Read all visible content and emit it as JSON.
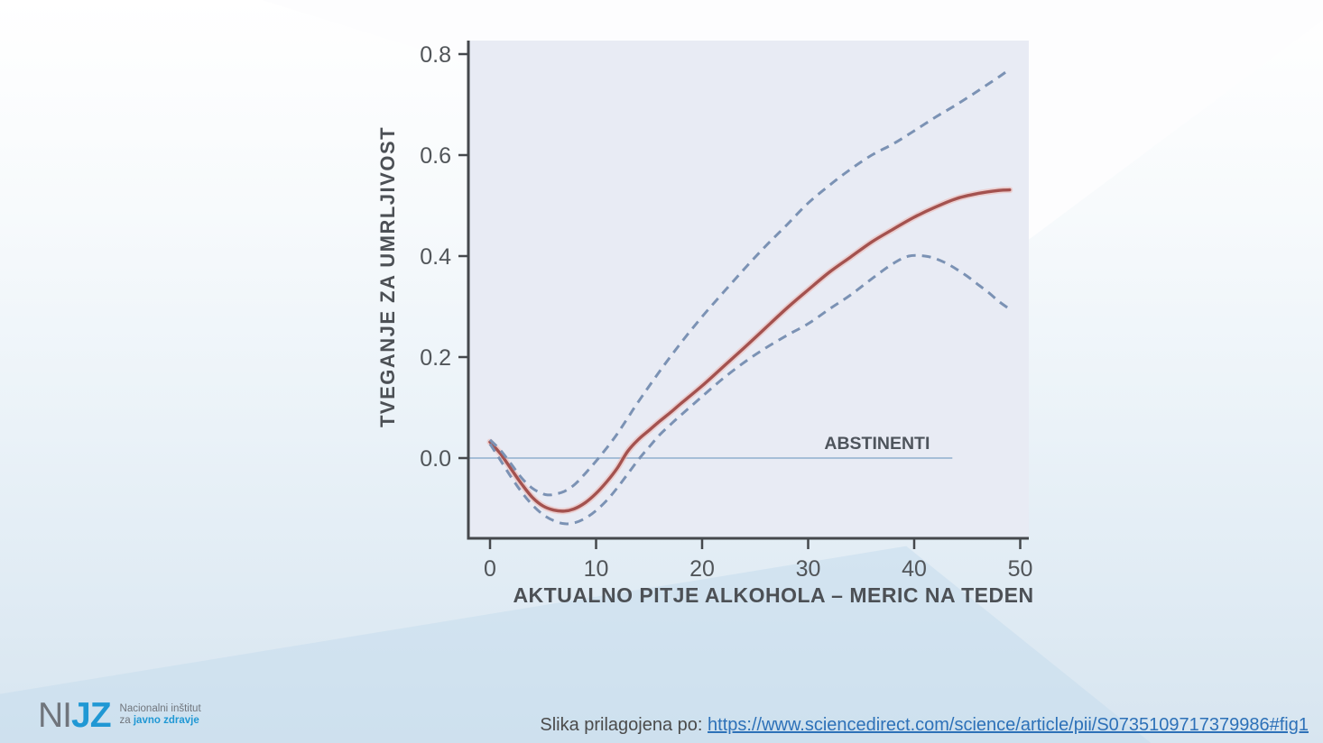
{
  "slide": {
    "logo": {
      "ni": "NI",
      "jz": "JZ",
      "line1": "Nacionalni inštitut",
      "line2_prefix": "za ",
      "line2_bold": "javno zdravje"
    },
    "citation": {
      "prefix": "Slika prilagojena po: ",
      "url": "https://www.sciencedirect.com/science/article/pii/S0735109717379986#fig1"
    }
  },
  "colors": {
    "mean_line": "#a4524f",
    "mean_halo": "#ecb6b1",
    "ci_line": "#7b92b4",
    "axis": "#45484c",
    "tick_label": "#515559",
    "axis_title": "#4c5055",
    "plot_bg": "#e8ebf4",
    "zero_line": "#8fb0cd",
    "annotation_text": "#4e545c"
  },
  "chart_data": {
    "type": "line",
    "title": "",
    "xlabel": "AKTUALNO PITJE ALKOHOLA – MERIC NA TEDEN",
    "ylabel": "TVEGANJE ZA UMRLJIVOST",
    "xlim": [
      -2,
      50.8
    ],
    "ylim": [
      -0.16,
      0.83
    ],
    "grid": false,
    "legend": "none",
    "xticks": [
      0,
      10,
      20,
      30,
      40,
      50
    ],
    "yticks": [
      0,
      0.2,
      0.4,
      0.6,
      0.8
    ],
    "ytick_labels": [
      "0.0",
      "0.2",
      "0.4",
      "0.6",
      "0.8"
    ],
    "annotation": {
      "label": "ABSTINENTI",
      "x": 36.5,
      "y": 0.03
    },
    "zero_line": {
      "y": 0,
      "x_start": -2,
      "x_end": 43.6
    },
    "series": [
      {
        "name": "mean_risk",
        "style": "solid",
        "points": [
          [
            0,
            0.032
          ],
          [
            1,
            0.008
          ],
          [
            2,
            -0.022
          ],
          [
            3,
            -0.052
          ],
          [
            4,
            -0.078
          ],
          [
            5,
            -0.095
          ],
          [
            6,
            -0.103
          ],
          [
            7,
            -0.105
          ],
          [
            8,
            -0.1
          ],
          [
            9,
            -0.088
          ],
          [
            10,
            -0.07
          ],
          [
            11,
            -0.047
          ],
          [
            12,
            -0.02
          ],
          [
            13,
            0.014
          ],
          [
            14,
            0.037
          ],
          [
            15,
            0.055
          ],
          [
            16,
            0.073
          ],
          [
            17,
            0.09
          ],
          [
            18,
            0.108
          ],
          [
            20,
            0.143
          ],
          [
            22,
            0.181
          ],
          [
            24,
            0.219
          ],
          [
            26,
            0.258
          ],
          [
            28,
            0.297
          ],
          [
            30,
            0.333
          ],
          [
            32,
            0.368
          ],
          [
            34,
            0.398
          ],
          [
            36,
            0.428
          ],
          [
            38,
            0.453
          ],
          [
            40,
            0.477
          ],
          [
            42,
            0.497
          ],
          [
            44,
            0.514
          ],
          [
            46,
            0.524
          ],
          [
            48,
            0.53
          ],
          [
            49,
            0.531
          ]
        ]
      },
      {
        "name": "upper_confidence_bound",
        "style": "dashed",
        "points": [
          [
            0,
            0.036
          ],
          [
            1,
            0.015
          ],
          [
            2,
            -0.012
          ],
          [
            3,
            -0.04
          ],
          [
            4,
            -0.06
          ],
          [
            5,
            -0.071
          ],
          [
            5.5,
            -0.073
          ],
          [
            6,
            -0.072
          ],
          [
            7,
            -0.066
          ],
          [
            8,
            -0.052
          ],
          [
            9,
            -0.03
          ],
          [
            10,
            -0.006
          ],
          [
            11,
            0.02
          ],
          [
            12,
            0.048
          ],
          [
            13,
            0.08
          ],
          [
            14,
            0.112
          ],
          [
            16,
            0.172
          ],
          [
            18,
            0.228
          ],
          [
            20,
            0.28
          ],
          [
            22,
            0.328
          ],
          [
            24,
            0.375
          ],
          [
            26,
            0.42
          ],
          [
            28,
            0.462
          ],
          [
            30,
            0.505
          ],
          [
            32,
            0.54
          ],
          [
            34,
            0.572
          ],
          [
            36,
            0.6
          ],
          [
            38,
            0.622
          ],
          [
            40,
            0.648
          ],
          [
            42,
            0.675
          ],
          [
            44,
            0.7
          ],
          [
            46,
            0.727
          ],
          [
            48,
            0.755
          ],
          [
            49,
            0.77
          ]
        ]
      },
      {
        "name": "lower_confidence_bound",
        "style": "dashed",
        "points": [
          [
            0,
            0.028
          ],
          [
            1,
            -0.005
          ],
          [
            2,
            -0.038
          ],
          [
            3,
            -0.068
          ],
          [
            4,
            -0.093
          ],
          [
            5,
            -0.112
          ],
          [
            6,
            -0.124
          ],
          [
            7,
            -0.13
          ],
          [
            8,
            -0.128
          ],
          [
            9,
            -0.119
          ],
          [
            10,
            -0.104
          ],
          [
            11,
            -0.084
          ],
          [
            12,
            -0.059
          ],
          [
            13,
            -0.031
          ],
          [
            14,
            -0.003
          ],
          [
            15,
            0.022
          ],
          [
            16,
            0.046
          ],
          [
            17,
            0.066
          ],
          [
            18,
            0.085
          ],
          [
            20,
            0.122
          ],
          [
            22,
            0.158
          ],
          [
            24,
            0.19
          ],
          [
            26,
            0.218
          ],
          [
            28,
            0.243
          ],
          [
            30,
            0.266
          ],
          [
            32,
            0.295
          ],
          [
            34,
            0.323
          ],
          [
            36,
            0.355
          ],
          [
            38,
            0.385
          ],
          [
            39.5,
            0.4
          ],
          [
            41,
            0.4
          ],
          [
            42,
            0.395
          ],
          [
            43,
            0.386
          ],
          [
            44,
            0.374
          ],
          [
            45,
            0.36
          ],
          [
            46,
            0.344
          ],
          [
            47,
            0.328
          ],
          [
            48,
            0.31
          ],
          [
            49,
            0.295
          ]
        ]
      }
    ]
  }
}
